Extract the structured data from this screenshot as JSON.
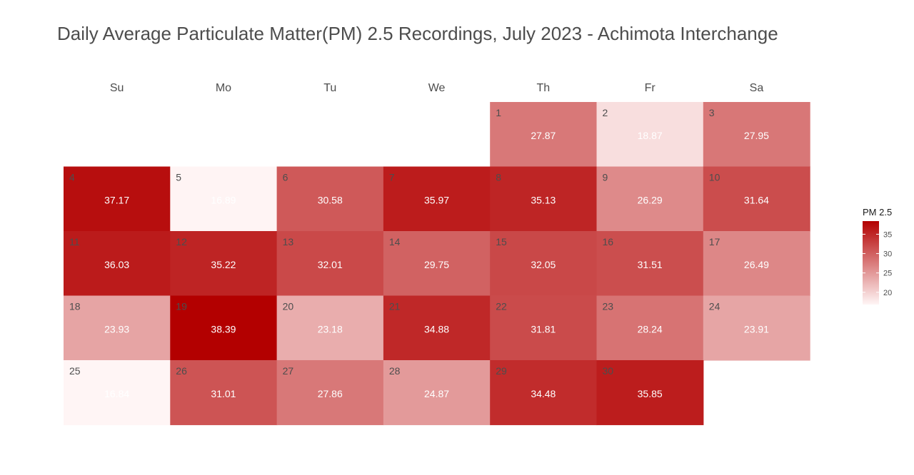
{
  "chart_data": {
    "type": "heatmap",
    "title": "Daily Average Particulate Matter(PM) 2.5 Recordings, July 2023 - Achimota Interchange",
    "weekdays": [
      "Su",
      "Mo",
      "Tu",
      "We",
      "Th",
      "Fr",
      "Sa"
    ],
    "first_weekday_index": 4,
    "days": [
      1,
      2,
      3,
      4,
      5,
      6,
      7,
      8,
      9,
      10,
      11,
      12,
      13,
      14,
      15,
      16,
      17,
      18,
      19,
      20,
      21,
      22,
      23,
      24,
      25,
      26,
      27,
      28,
      29,
      30
    ],
    "values": [
      27.87,
      18.87,
      27.95,
      37.17,
      16.89,
      30.58,
      35.97,
      35.13,
      26.29,
      31.64,
      36.03,
      35.22,
      32.01,
      29.75,
      32.05,
      31.51,
      26.49,
      23.93,
      38.39,
      23.18,
      34.88,
      31.81,
      28.24,
      23.91,
      16.84,
      31.01,
      27.86,
      24.87,
      34.48,
      35.85
    ],
    "legend": {
      "title": "PM 2.5",
      "ticks": [
        20,
        25,
        30,
        35
      ],
      "range": [
        16.84,
        38.39
      ]
    },
    "colors": {
      "low": "#fff5f5",
      "high": "#b30000"
    }
  }
}
